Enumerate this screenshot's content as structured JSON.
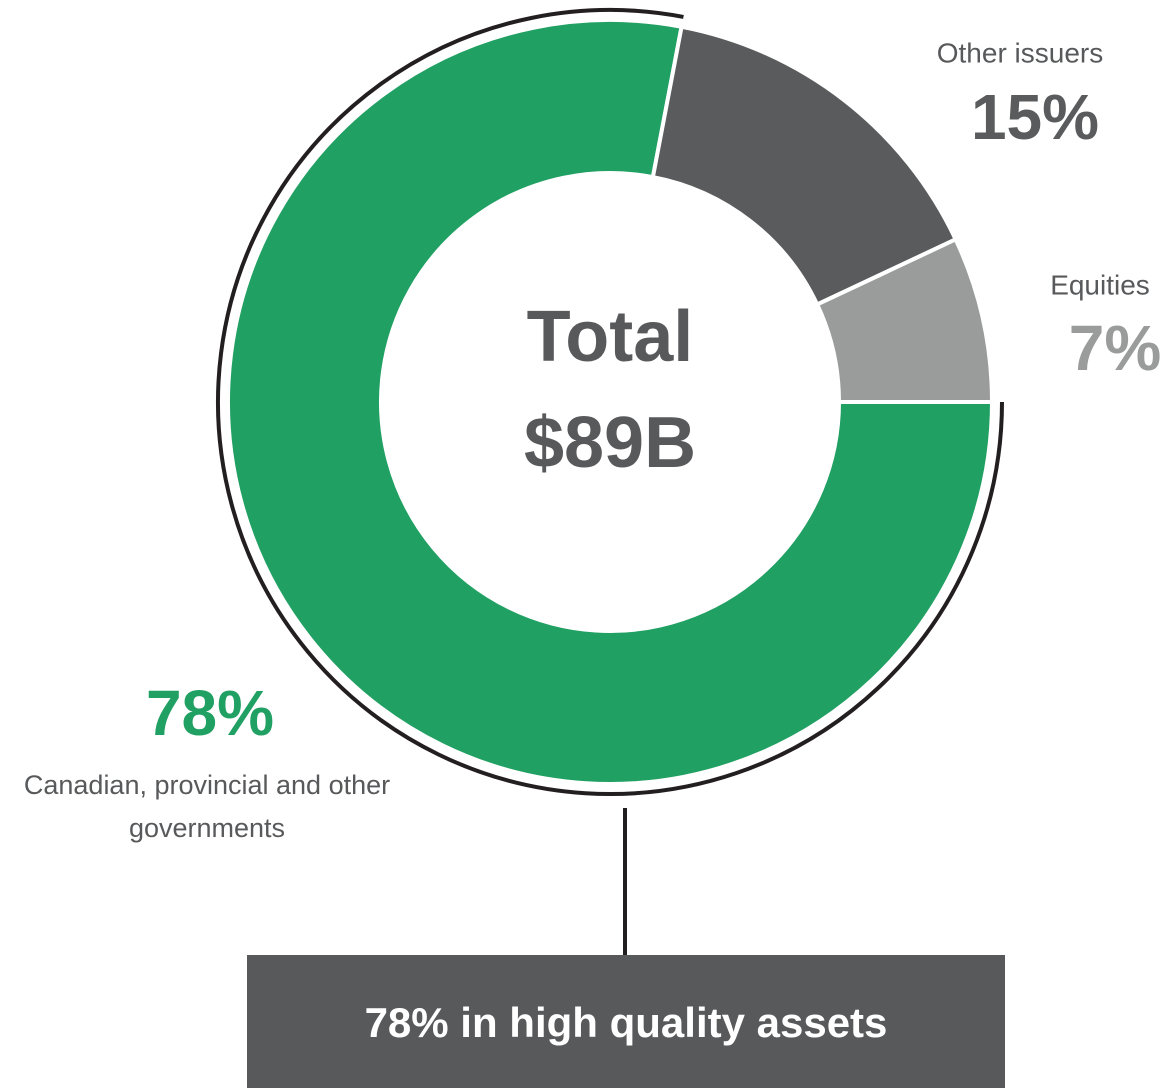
{
  "chart_data": {
    "type": "pie",
    "donut": true,
    "categories": [
      "Canadian, provincial and other governments",
      "Other issuers",
      "Equities"
    ],
    "values": [
      78,
      15,
      7
    ],
    "value_labels": [
      "78%",
      "15%",
      "7%"
    ],
    "colors": [
      "#21a063",
      "#595b5c",
      "#9a9c9c"
    ],
    "center_label": [
      "Total",
      "$89B"
    ],
    "annotation": "78% in high quality assets"
  }
}
